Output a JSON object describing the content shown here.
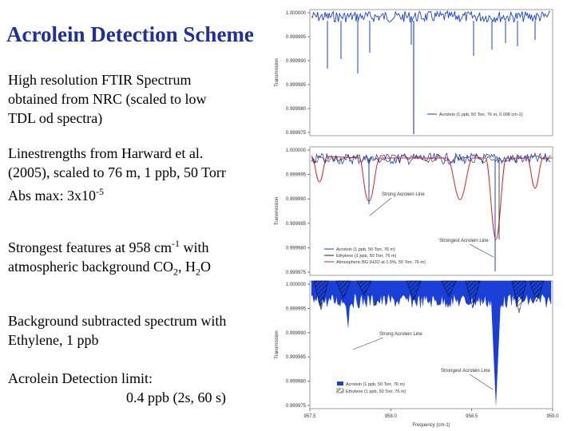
{
  "slide": {
    "title": "Acrolein Detection Scheme",
    "text1": {
      "line1": "High resolution FTIR Spectrum",
      "line2": "obtained from NRC (scaled to low",
      "line3": "TDL od spectra)"
    },
    "text2": {
      "line1": "Linestrengths from Harward et al.",
      "line2": "(2005), scaled to 76 m, 1 ppb, 50 Torr",
      "abs_prefix": "Abs max: 3x10",
      "abs_exp": "-5"
    },
    "text3": {
      "a": "Strongest features at 958 cm",
      "a_exp": "-1",
      "a_tail": " with",
      "b": "atmospheric background CO",
      "b_sub1": "2",
      "b_mid": ", H",
      "b_sub2": "2",
      "b_tail": "O"
    },
    "text4": {
      "line1": "Background subtracted spectrum with",
      "line2": "Ethylene, 1 ppb"
    },
    "text5": {
      "line1": "Acrolein Detection limit:",
      "line2": "0.4 ppb (2s, 60 s)"
    }
  },
  "chart_data": [
    {
      "type": "line",
      "ylabel": "Transmission",
      "yticks": [
        "1.000000",
        "0.999995",
        "0.999990",
        "0.999985",
        "0.999980",
        "0.999975"
      ],
      "legend": [
        "Acrolein (1 ppb, 50 Torr, 76 m, 0.008 cm-1)"
      ],
      "colors": [
        "#1a3fd6"
      ],
      "ylim": [
        0.999975,
        1.0
      ]
    },
    {
      "type": "line",
      "ylabel": "Transmission",
      "yticks": [
        "1.000000",
        "0.999995",
        "0.999990",
        "0.999985",
        "0.999980",
        "0.999975"
      ],
      "annotations": [
        "Strong Acrolein Line",
        "Strongest Acrolein Line"
      ],
      "series": [
        {
          "name": "Acrolein (1 ppb, 50 Torr, 76 m)",
          "color": "#1a3fd6"
        },
        {
          "name": "Ethylene (1 ppb, 50 Torr, 76 m)",
          "color": "#222222"
        },
        {
          "name": "Atmospheric BG (H2O at 1.5%, 50 Torr, 76 m)",
          "color": "#e02020"
        }
      ]
    },
    {
      "type": "area",
      "ylabel": "Transmission",
      "yticks": [
        "1.000000",
        "0.999995",
        "0.999990",
        "0.999985",
        "0.999980",
        "0.999975"
      ],
      "xlabel": "Frequency (cm-1)",
      "xticks": [
        "957.5",
        "958.0",
        "958.5",
        "959.0"
      ],
      "xlim": [
        957.5,
        959.0
      ],
      "annotations": [
        "Strong Acrolein Line",
        "Strongest Acrolein Line"
      ],
      "series": [
        {
          "name": "Acrolein (1 ppb, 50 Torr, 76 m)",
          "color": "#1a3fd6"
        },
        {
          "name": "Ethylene (1 ppb, 50 Torr, 76 m)",
          "color": "#ffffff"
        }
      ]
    }
  ]
}
